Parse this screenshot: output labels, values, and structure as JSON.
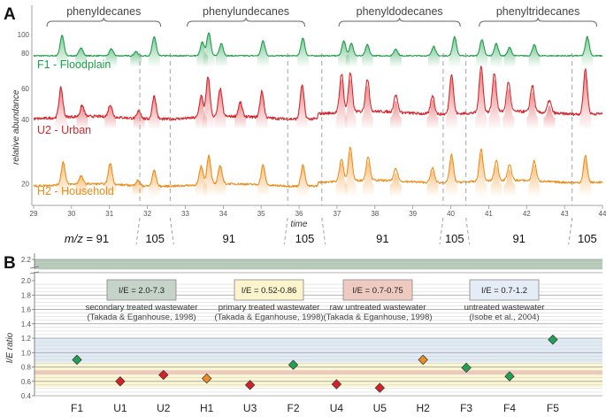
{
  "chart_data": [
    {
      "panel": "A",
      "type": "line",
      "xlabel": "time",
      "ylabel": "relative abundance",
      "xlim": [
        29,
        44
      ],
      "x_ticks": [
        29,
        30,
        31,
        32,
        33,
        34,
        35,
        36,
        37,
        38,
        39,
        40,
        41,
        42,
        43,
        44
      ],
      "y_tick_labels": [
        {
          "label": "100",
          "trace": "F1"
        },
        {
          "label": "80",
          "trace": "F1"
        },
        {
          "label": "60",
          "trace": "U2"
        },
        {
          "label": "40",
          "trace": "U2"
        },
        {
          "label": "20",
          "trace": "H2"
        }
      ],
      "compound_groups": [
        {
          "label": "phenyldecanes",
          "x_start": 29.35,
          "x_end": 32.35
        },
        {
          "label": "phenylundecanes",
          "x_start": 33.05,
          "x_end": 36.15
        },
        {
          "label": "phenyldodecanes",
          "x_start": 37.05,
          "x_end": 40.25
        },
        {
          "label": "phenyltridecanes",
          "x_start": 40.75,
          "x_end": 43.85
        }
      ],
      "mz_segments": [
        {
          "label": "m/z = 91",
          "x_start": 29,
          "x_end": 31.8
        },
        {
          "label": "105",
          "x_start": 31.8,
          "x_end": 32.6
        },
        {
          "label": "91",
          "x_start": 32.6,
          "x_end": 35.7
        },
        {
          "label": "105",
          "x_start": 35.7,
          "x_end": 36.6
        },
        {
          "label": "91",
          "x_start": 36.6,
          "x_end": 39.8
        },
        {
          "label": "105",
          "x_start": 39.8,
          "x_end": 40.4
        },
        {
          "label": "91",
          "x_start": 40.4,
          "x_end": 43.2
        },
        {
          "label": "105",
          "x_start": 43.2,
          "x_end": 44
        }
      ],
      "series": [
        {
          "name": "F1 - Floodplain",
          "color": "#1e9e4a",
          "baseline": 77,
          "noise": 0.8,
          "peaks": [
            [
              29.75,
              15
            ],
            [
              30.25,
              6
            ],
            [
              31.05,
              5
            ],
            [
              31.7,
              3
            ],
            [
              32.18,
              14
            ],
            [
              33.45,
              10
            ],
            [
              33.62,
              17
            ],
            [
              33.95,
              9
            ],
            [
              35.05,
              11
            ],
            [
              36.1,
              13
            ],
            [
              37.18,
              11
            ],
            [
              37.38,
              9
            ],
            [
              37.8,
              8
            ],
            [
              38.55,
              5
            ],
            [
              39.55,
              7
            ],
            [
              40.1,
              14
            ],
            [
              40.82,
              12
            ],
            [
              41.2,
              9
            ],
            [
              41.55,
              6
            ],
            [
              42.2,
              8
            ],
            [
              43.6,
              14
            ]
          ]
        },
        {
          "name": "U2 - Urban",
          "color": "#d7262b",
          "baseline": 41,
          "noise": 1.8,
          "peaks": [
            [
              29.72,
              19
            ],
            [
              30.28,
              7
            ],
            [
              31.02,
              8
            ],
            [
              31.78,
              5
            ],
            [
              32.18,
              15
            ],
            [
              33.42,
              14
            ],
            [
              33.6,
              26
            ],
            [
              33.92,
              18
            ],
            [
              34.45,
              9
            ],
            [
              35.02,
              17
            ],
            [
              36.08,
              22
            ],
            [
              37.12,
              25
            ],
            [
              37.35,
              25
            ],
            [
              37.8,
              21
            ],
            [
              38.55,
              11
            ],
            [
              39.52,
              12
            ],
            [
              40.02,
              26
            ],
            [
              40.8,
              30
            ],
            [
              41.15,
              25
            ],
            [
              41.52,
              19
            ],
            [
              42.15,
              17
            ],
            [
              42.6,
              8
            ],
            [
              43.55,
              29
            ]
          ]
        },
        {
          "name": "H2 - Household",
          "color": "#ef8c18",
          "baseline": 19,
          "noise": 1.5,
          "peaks": [
            [
              29.78,
              17
            ],
            [
              30.25,
              6
            ],
            [
              31.02,
              16
            ],
            [
              31.75,
              4
            ],
            [
              32.18,
              12
            ],
            [
              33.42,
              14
            ],
            [
              33.62,
              22
            ],
            [
              33.92,
              14
            ],
            [
              35.05,
              15
            ],
            [
              36.1,
              16
            ],
            [
              37.12,
              17
            ],
            [
              37.35,
              25
            ],
            [
              37.82,
              18
            ],
            [
              38.55,
              9
            ],
            [
              39.52,
              11
            ],
            [
              40.02,
              21
            ],
            [
              40.8,
              24
            ],
            [
              41.2,
              15
            ],
            [
              41.55,
              12
            ],
            [
              42.2,
              15
            ],
            [
              43.55,
              20
            ]
          ]
        }
      ]
    },
    {
      "panel": "B",
      "type": "scatter",
      "ylabel": "I/E ratio",
      "ylim": [
        0.4,
        2.2
      ],
      "y_ticks": [
        0.4,
        0.6,
        0.8,
        1.0,
        1.2,
        1.4,
        1.6,
        1.8,
        2.0,
        2.2
      ],
      "y_tick_labels": [
        "0.4",
        "0.6",
        "0.8",
        "1.0",
        "1.2",
        "1.4",
        "1.6",
        "1.8",
        "2.0",
        "2.2"
      ],
      "y_axis_break": true,
      "categories": [
        "F1",
        "U1",
        "U2",
        "H1",
        "U3",
        "F2",
        "U4",
        "U5",
        "H2",
        "F3",
        "F4",
        "F5"
      ],
      "values": [
        0.9,
        0.6,
        0.69,
        0.64,
        0.55,
        0.83,
        0.56,
        0.51,
        0.9,
        0.79,
        0.67,
        1.18
      ],
      "point_colors": [
        "#22a055",
        "#d42027",
        "#d42027",
        "#ee8b24",
        "#d42027",
        "#22a055",
        "#d42027",
        "#d42027",
        "#ee8b24",
        "#22a055",
        "#22a055",
        "#22a055"
      ],
      "reference_ranges": [
        {
          "label": "I/E = 2.0-7.3",
          "description": "secondary treated wastewater",
          "citation": "(Takada & Eganhouse, 1998)",
          "ymin": 2.05,
          "ymax": 2.2,
          "band_color": "#b5c9b8",
          "box_color": "#c5d3c8"
        },
        {
          "label": "I/E = 0.52-0.86",
          "description": "primary treated wastewater",
          "citation": "(Takada & Eganhouse, 1998)",
          "ymin": 0.52,
          "ymax": 0.86,
          "band_color": "#fbf6d2",
          "box_color": "#fbf4cc"
        },
        {
          "label": "I/E = 0.7-0.75",
          "description": "raw untreated wastewater",
          "citation": "(Takada & Eganhouse, 1998)",
          "ymin": 0.7,
          "ymax": 0.75,
          "band_color": "#f1c6bb",
          "box_color": "#efcac0"
        },
        {
          "label": "I/E = 0.7-1.2",
          "description": "untreated wastewater",
          "citation": "(Isobe et al., 2004)",
          "ymin": 0.7,
          "ymax": 1.2,
          "band_color": "#e1ebf6",
          "box_color": "#e4ecf6"
        }
      ]
    }
  ]
}
